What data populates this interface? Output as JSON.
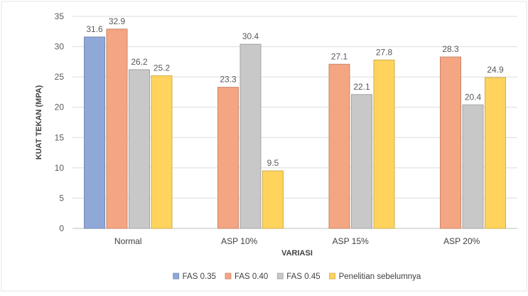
{
  "chart_data": {
    "type": "bar",
    "title": "",
    "xlabel": "VARIASI",
    "ylabel": "KUAT TEKAN (MPA)",
    "ylim": [
      0,
      35
    ],
    "yticks": [
      0,
      5,
      10,
      15,
      20,
      25,
      30,
      35
    ],
    "grid": true,
    "legend_position": "bottom",
    "categories": [
      "Normal",
      "ASP 10%",
      "ASP 15%",
      "ASP 20%"
    ],
    "series": [
      {
        "name": "FAS 0.35",
        "color": "#8fa8d8",
        "values": [
          31.6,
          null,
          null,
          null
        ]
      },
      {
        "name": "FAS 0.40",
        "color": "#f4a582",
        "values": [
          32.9,
          23.3,
          27.1,
          28.3
        ]
      },
      {
        "name": "FAS 0.45",
        "color": "#c8c8c8",
        "values": [
          26.2,
          30.4,
          22.1,
          20.4
        ]
      },
      {
        "name": "Penelitian sebelumnya",
        "color": "#ffd35c",
        "values": [
          25.2,
          9.5,
          27.8,
          24.9
        ]
      }
    ]
  }
}
